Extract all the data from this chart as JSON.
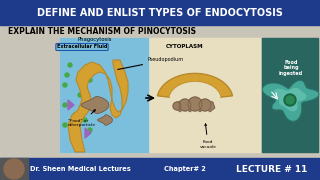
{
  "title": "DEFINE AND ENLIST TYPES OF ENDOCYTOSIS",
  "subtitle": "EXPLAIN THE MECHANISM OF PINOCYTOSIS",
  "title_bg": "#1e3a8a",
  "title_color": "#ffffff",
  "subtitle_color": "#000000",
  "body_bg": "#c8c4b8",
  "footer_bg": "#1e3a8a",
  "footer_text1": "Dr. Sheen Medical Lectures",
  "footer_text2": "Chapter# 2",
  "footer_text3": "LECTURE # 11",
  "footer_color": "#ffffff",
  "phago_label": "Phagocytosis",
  "extracell_label": "Extracellular Fluid",
  "extracell_bg": "#7bbfdc",
  "cytoplasm_label": "CYTOPLASM",
  "pseudo_label": "Pseudopodium",
  "food_label": "\"Food\" or\notherparticle",
  "vacuole_label": "Food\nvacuole",
  "food_ingested_label": "Food\nbeing\ningested",
  "right_panel_bg": "#3a8a7a",
  "diagram_bg": "#e8dfc0",
  "cell_color": "#d4a030",
  "cell_edge": "#b8882a",
  "food_color": "#9a8060",
  "food_edge": "#6a5040"
}
